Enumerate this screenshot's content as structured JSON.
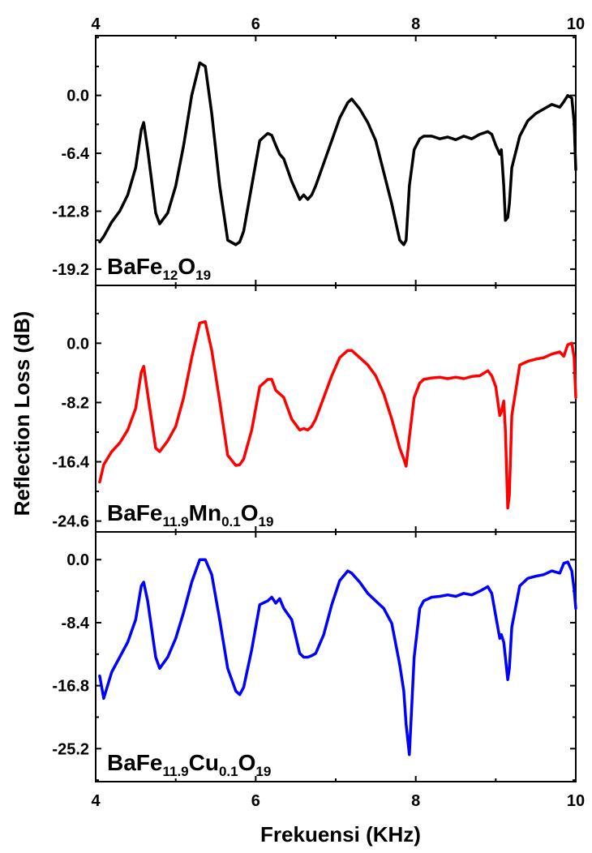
{
  "chart_data": {
    "type": "line",
    "xlabel": "Frekuensi (KHz)",
    "ylabel": "Reflection Loss (dB)",
    "xlim": [
      4,
      10
    ],
    "x_ticks": [
      "4",
      "6",
      "8",
      "10"
    ],
    "grid": false,
    "panels": [
      {
        "label_parts": [
          {
            "text": "BaFe",
            "sub": false
          },
          {
            "text": "12",
            "sub": true
          },
          {
            "text": "O",
            "sub": false
          },
          {
            "text": "19",
            "sub": true
          }
        ],
        "color": "#000000",
        "ylim": [
          -21.0,
          6.6
        ],
        "y_ticks": [
          0.0,
          -6.4,
          -12.8,
          -19.2
        ],
        "y_tick_labels": [
          "0.0",
          "-6.4",
          "-12.8",
          "-19.2"
        ],
        "x": [
          4.05,
          4.1,
          4.2,
          4.3,
          4.4,
          4.5,
          4.57,
          4.6,
          4.65,
          4.75,
          4.8,
          4.9,
          5.0,
          5.1,
          5.2,
          5.3,
          5.37,
          5.45,
          5.55,
          5.65,
          5.75,
          5.8,
          5.85,
          5.95,
          6.05,
          6.15,
          6.2,
          6.25,
          6.3,
          6.35,
          6.45,
          6.55,
          6.6,
          6.65,
          6.7,
          6.75,
          6.85,
          6.95,
          7.05,
          7.15,
          7.2,
          7.3,
          7.4,
          7.5,
          7.6,
          7.7,
          7.8,
          7.85,
          7.88,
          7.92,
          7.98,
          8.05,
          8.1,
          8.2,
          8.3,
          8.4,
          8.5,
          8.6,
          8.7,
          8.8,
          8.9,
          8.95,
          9.0,
          9.05,
          9.07,
          9.1,
          9.12,
          9.15,
          9.17,
          9.2,
          9.3,
          9.4,
          9.5,
          9.6,
          9.7,
          9.8,
          9.85,
          9.9,
          9.95,
          9.98,
          10.0
        ],
        "values": [
          -16.2,
          -15.6,
          -14.0,
          -12.8,
          -11.0,
          -8.0,
          -3.8,
          -3.0,
          -6.0,
          -13.0,
          -14.2,
          -13.0,
          -10.0,
          -5.5,
          0.0,
          3.6,
          3.2,
          -2.0,
          -10.0,
          -16.0,
          -16.5,
          -16.2,
          -15.0,
          -10.0,
          -5.0,
          -4.2,
          -4.4,
          -5.5,
          -6.5,
          -7.0,
          -9.5,
          -11.5,
          -11.0,
          -11.5,
          -11.0,
          -10.0,
          -7.5,
          -5.0,
          -2.5,
          -0.8,
          -0.4,
          -1.5,
          -3.0,
          -5.0,
          -8.5,
          -12.0,
          -16.0,
          -16.5,
          -16.0,
          -10.0,
          -6.0,
          -4.8,
          -4.5,
          -4.5,
          -4.8,
          -4.6,
          -4.9,
          -4.5,
          -4.8,
          -4.3,
          -4.0,
          -4.3,
          -5.5,
          -6.5,
          -6.0,
          -10.0,
          -13.8,
          -13.5,
          -12.0,
          -8.0,
          -4.5,
          -2.8,
          -2.0,
          -1.5,
          -1.0,
          -1.3,
          -0.7,
          0.0,
          -0.3,
          -3.0,
          -8.2
        ]
      },
      {
        "label_parts": [
          {
            "text": "BaFe",
            "sub": false
          },
          {
            "text": "11.9",
            "sub": true
          },
          {
            "text": "Mn",
            "sub": false
          },
          {
            "text": "0.1",
            "sub": true
          },
          {
            "text": "O",
            "sub": false
          },
          {
            "text": "19",
            "sub": true
          }
        ],
        "color": "#ff0000",
        "ylim": [
          -26.1,
          8.0
        ],
        "y_ticks": [
          0.0,
          -8.2,
          -16.4,
          -24.6
        ],
        "y_tick_labels": [
          "0.0",
          "-8.2",
          "-16.4",
          "-24.6"
        ],
        "x": [
          4.05,
          4.1,
          4.2,
          4.3,
          4.4,
          4.5,
          4.57,
          4.6,
          4.65,
          4.75,
          4.8,
          4.9,
          5.0,
          5.1,
          5.2,
          5.3,
          5.37,
          5.45,
          5.55,
          5.65,
          5.75,
          5.8,
          5.85,
          5.95,
          6.05,
          6.15,
          6.2,
          6.25,
          6.3,
          6.35,
          6.45,
          6.55,
          6.6,
          6.65,
          6.7,
          6.75,
          6.85,
          6.95,
          7.05,
          7.15,
          7.2,
          7.3,
          7.4,
          7.5,
          7.6,
          7.7,
          7.8,
          7.85,
          7.88,
          7.92,
          7.98,
          8.05,
          8.1,
          8.2,
          8.3,
          8.4,
          8.5,
          8.6,
          8.7,
          8.8,
          8.9,
          8.95,
          9.0,
          9.05,
          9.07,
          9.1,
          9.12,
          9.15,
          9.17,
          9.2,
          9.3,
          9.4,
          9.5,
          9.6,
          9.7,
          9.8,
          9.85,
          9.9,
          9.95,
          9.98,
          10.0
        ],
        "values": [
          -19.2,
          -16.8,
          -15.0,
          -13.8,
          -12.0,
          -9.0,
          -4.0,
          -3.2,
          -7.0,
          -14.5,
          -15.0,
          -13.5,
          -11.5,
          -7.5,
          -2.0,
          2.8,
          3.0,
          -1.0,
          -8.0,
          -15.5,
          -16.9,
          -16.8,
          -16.0,
          -12.0,
          -6.0,
          -5.0,
          -5.0,
          -6.5,
          -7.0,
          -7.5,
          -10.5,
          -12.0,
          -11.8,
          -12.0,
          -11.5,
          -10.5,
          -7.5,
          -4.5,
          -2.0,
          -1.0,
          -1.0,
          -2.0,
          -3.0,
          -4.5,
          -7.0,
          -10.5,
          -14.5,
          -16.0,
          -17.0,
          -13.0,
          -7.5,
          -5.5,
          -5.0,
          -4.8,
          -4.7,
          -4.9,
          -4.7,
          -4.9,
          -4.6,
          -4.5,
          -3.8,
          -4.5,
          -6.0,
          -10.0,
          -9.5,
          -8.0,
          -12.0,
          -22.8,
          -21.0,
          -10.0,
          -3.0,
          -2.5,
          -2.2,
          -2.0,
          -1.5,
          -1.2,
          -1.8,
          -0.2,
          0.0,
          -2.0,
          -7.5
        ]
      },
      {
        "label_parts": [
          {
            "text": "BaFe",
            "sub": false
          },
          {
            "text": "11.9",
            "sub": true
          },
          {
            "text": "Cu",
            "sub": false
          },
          {
            "text": "0.1",
            "sub": true
          },
          {
            "text": "O",
            "sub": false
          },
          {
            "text": "19",
            "sub": true
          }
        ],
        "color": "#0000ff",
        "ylim": [
          -29.6,
          3.7
        ],
        "y_ticks": [
          0.0,
          -8.4,
          -16.8,
          -25.2
        ],
        "y_tick_labels": [
          "0.0",
          "-8.4",
          "-16.8",
          "-25.2"
        ],
        "x": [
          4.05,
          4.1,
          4.2,
          4.3,
          4.4,
          4.5,
          4.57,
          4.6,
          4.65,
          4.75,
          4.8,
          4.9,
          5.0,
          5.1,
          5.2,
          5.3,
          5.37,
          5.45,
          5.55,
          5.65,
          5.75,
          5.8,
          5.85,
          5.95,
          6.05,
          6.15,
          6.2,
          6.25,
          6.3,
          6.35,
          6.45,
          6.55,
          6.6,
          6.65,
          6.7,
          6.75,
          6.85,
          6.95,
          7.05,
          7.15,
          7.2,
          7.3,
          7.4,
          7.5,
          7.6,
          7.7,
          7.8,
          7.85,
          7.88,
          7.92,
          7.98,
          8.05,
          8.1,
          8.2,
          8.3,
          8.4,
          8.5,
          8.6,
          8.7,
          8.8,
          8.9,
          8.95,
          9.0,
          9.05,
          9.07,
          9.1,
          9.12,
          9.15,
          9.17,
          9.2,
          9.3,
          9.4,
          9.5,
          9.6,
          9.7,
          9.8,
          9.85,
          9.9,
          9.95,
          9.98,
          10.0
        ],
        "values": [
          -15.5,
          -18.5,
          -15.0,
          -13.0,
          -11.0,
          -8.0,
          -3.5,
          -3.0,
          -5.5,
          -13.0,
          -14.5,
          -13.0,
          -10.5,
          -7.0,
          -3.0,
          0.0,
          0.0,
          -2.0,
          -8.0,
          -14.5,
          -17.5,
          -18.0,
          -17.0,
          -12.0,
          -6.0,
          -5.5,
          -5.0,
          -5.8,
          -5.2,
          -6.5,
          -8.0,
          -12.5,
          -13.0,
          -13.0,
          -12.8,
          -12.5,
          -10.0,
          -6.0,
          -2.8,
          -1.5,
          -1.8,
          -3.0,
          -4.5,
          -5.5,
          -6.5,
          -8.5,
          -14.0,
          -17.5,
          -22.0,
          -26.0,
          -13.0,
          -6.5,
          -5.5,
          -5.0,
          -4.9,
          -4.7,
          -4.9,
          -4.5,
          -4.7,
          -4.2,
          -3.6,
          -4.5,
          -7.5,
          -10.5,
          -10.0,
          -11.0,
          -13.0,
          -16.0,
          -14.5,
          -9.0,
          -3.5,
          -2.5,
          -2.2,
          -2.0,
          -1.5,
          -1.8,
          -0.5,
          -0.3,
          -1.5,
          -4.0,
          -6.5
        ]
      }
    ]
  }
}
